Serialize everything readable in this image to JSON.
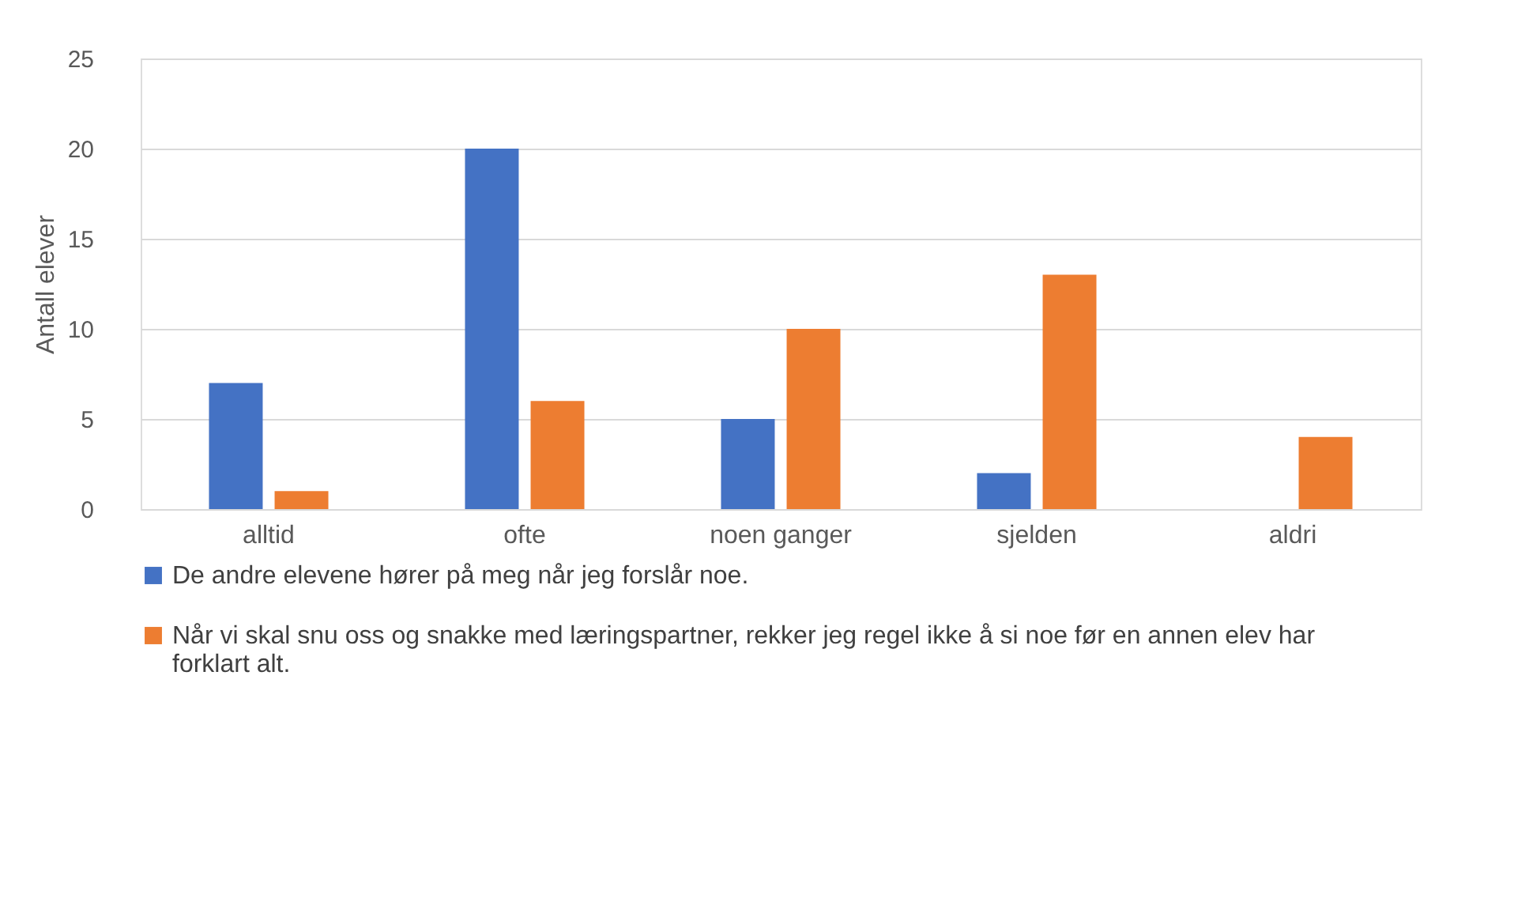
{
  "chart_data": {
    "type": "bar",
    "ylabel": "Antall elever",
    "categories": [
      "alltid",
      "ofte",
      "noen ganger",
      "sjelden",
      "aldri"
    ],
    "series": [
      {
        "name": "De andre elevene hører på meg når jeg forslår noe.",
        "color": "#4472c4",
        "values": [
          7,
          20,
          5,
          2,
          0
        ]
      },
      {
        "name": "Når vi skal snu oss og snakke med læringspartner, rekker jeg regel ikke å si noe før en annen elev har forklart alt.",
        "color": "#ed7d31",
        "values": [
          1,
          6,
          10,
          13,
          4
        ]
      }
    ],
    "ylim": [
      0,
      25
    ],
    "yticks": [
      0,
      5,
      10,
      15,
      20,
      25
    ],
    "grid": "y",
    "legend": "bottom"
  }
}
